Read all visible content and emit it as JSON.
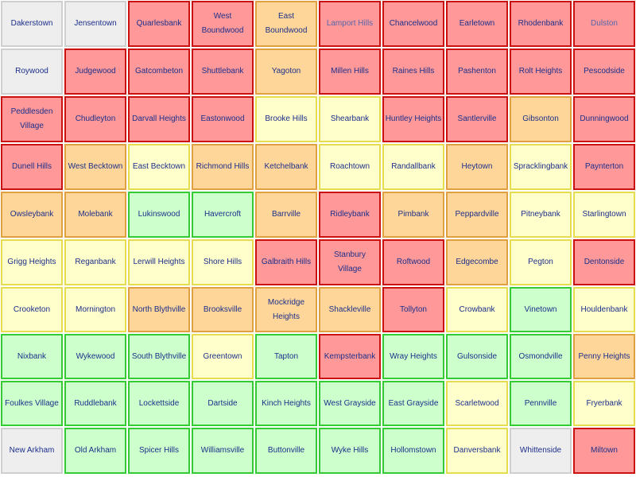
{
  "status_colors": {
    "grey": {
      "fill": "#eeeeee",
      "border": "#cfcfcf"
    },
    "red": {
      "fill": "#ff9999",
      "border": "#cc1111"
    },
    "orange": {
      "fill": "#ffd699",
      "border": "#e0a040"
    },
    "yellow": {
      "fill": "#ffffcc",
      "border": "#e6dc50"
    },
    "green": {
      "fill": "#ccffcc",
      "border": "#33cc33"
    }
  },
  "grid": {
    "rows": [
      [
        {
          "name": "Dakerstown",
          "status": "grey"
        },
        {
          "name": "Jensentown",
          "status": "grey"
        },
        {
          "name": "Quarlesbank",
          "status": "red"
        },
        {
          "name": "West Boundwood",
          "status": "red"
        },
        {
          "name": "East Boundwood",
          "status": "orange"
        },
        {
          "name": "Lamport Hills",
          "status": "red",
          "faded": true
        },
        {
          "name": "Chancelwood",
          "status": "red"
        },
        {
          "name": "Earletown",
          "status": "red"
        },
        {
          "name": "Rhodenbank",
          "status": "red"
        },
        {
          "name": "Dulston",
          "status": "red",
          "faded": true
        }
      ],
      [
        {
          "name": "Roywood",
          "status": "grey"
        },
        {
          "name": "Judgewood",
          "status": "red"
        },
        {
          "name": "Gatcombeton",
          "status": "red"
        },
        {
          "name": "Shuttlebank",
          "status": "red"
        },
        {
          "name": "Yagoton",
          "status": "orange"
        },
        {
          "name": "Millen Hills",
          "status": "red"
        },
        {
          "name": "Raines Hills",
          "status": "red"
        },
        {
          "name": "Pashenton",
          "status": "red"
        },
        {
          "name": "Rolt Heights",
          "status": "red"
        },
        {
          "name": "Pescodside",
          "status": "red"
        }
      ],
      [
        {
          "name": "Peddlesden Village",
          "status": "red"
        },
        {
          "name": "Chudleyton",
          "status": "red"
        },
        {
          "name": "Darvall Heights",
          "status": "red"
        },
        {
          "name": "Eastonwood",
          "status": "red"
        },
        {
          "name": "Brooke Hills",
          "status": "yellow"
        },
        {
          "name": "Shearbank",
          "status": "yellow"
        },
        {
          "name": "Huntley Heights",
          "status": "red"
        },
        {
          "name": "Santlerville",
          "status": "red"
        },
        {
          "name": "Gibsonton",
          "status": "orange"
        },
        {
          "name": "Dunningwood",
          "status": "red"
        }
      ],
      [
        {
          "name": "Dunell Hills",
          "status": "red"
        },
        {
          "name": "West Becktown",
          "status": "orange"
        },
        {
          "name": "East Becktown",
          "status": "yellow"
        },
        {
          "name": "Richmond Hills",
          "status": "orange"
        },
        {
          "name": "Ketchelbank",
          "status": "orange"
        },
        {
          "name": "Roachtown",
          "status": "yellow"
        },
        {
          "name": "Randallbank",
          "status": "yellow"
        },
        {
          "name": "Heytown",
          "status": "orange"
        },
        {
          "name": "Spracklingbank",
          "status": "yellow"
        },
        {
          "name": "Paynterton",
          "status": "red"
        }
      ],
      [
        {
          "name": "Owsleybank",
          "status": "orange"
        },
        {
          "name": "Molebank",
          "status": "orange"
        },
        {
          "name": "Lukinswood",
          "status": "green"
        },
        {
          "name": "Havercroft",
          "status": "green"
        },
        {
          "name": "Barrville",
          "status": "orange"
        },
        {
          "name": "Ridleybank",
          "status": "red"
        },
        {
          "name": "Pimbank",
          "status": "orange"
        },
        {
          "name": "Peppardville",
          "status": "orange"
        },
        {
          "name": "Pitneybank",
          "status": "yellow"
        },
        {
          "name": "Starlingtown",
          "status": "yellow"
        }
      ],
      [
        {
          "name": "Grigg Heights",
          "status": "yellow"
        },
        {
          "name": "Reganbank",
          "status": "yellow"
        },
        {
          "name": "Lerwill Heights",
          "status": "yellow"
        },
        {
          "name": "Shore Hills",
          "status": "yellow"
        },
        {
          "name": "Galbraith Hills",
          "status": "red"
        },
        {
          "name": "Stanbury Village",
          "status": "red"
        },
        {
          "name": "Roftwood",
          "status": "red"
        },
        {
          "name": "Edgecombe",
          "status": "orange"
        },
        {
          "name": "Pegton",
          "status": "yellow"
        },
        {
          "name": "Dentonside",
          "status": "red"
        }
      ],
      [
        {
          "name": "Crooketon",
          "status": "yellow"
        },
        {
          "name": "Mornington",
          "status": "yellow"
        },
        {
          "name": "North Blythville",
          "status": "orange"
        },
        {
          "name": "Brooksville",
          "status": "orange"
        },
        {
          "name": "Mockridge Heights",
          "status": "orange"
        },
        {
          "name": "Shackleville",
          "status": "orange"
        },
        {
          "name": "Tollyton",
          "status": "red"
        },
        {
          "name": "Crowbank",
          "status": "yellow"
        },
        {
          "name": "Vinetown",
          "status": "green"
        },
        {
          "name": "Houldenbank",
          "status": "yellow"
        }
      ],
      [
        {
          "name": "Nixbank",
          "status": "green"
        },
        {
          "name": "Wykewood",
          "status": "green"
        },
        {
          "name": "South Blythville",
          "status": "green"
        },
        {
          "name": "Greentown",
          "status": "yellow"
        },
        {
          "name": "Tapton",
          "status": "green"
        },
        {
          "name": "Kempsterbank",
          "status": "red"
        },
        {
          "name": "Wray Heights",
          "status": "green"
        },
        {
          "name": "Gulsonside",
          "status": "green"
        },
        {
          "name": "Osmondville",
          "status": "green"
        },
        {
          "name": "Penny Heights",
          "status": "orange"
        }
      ],
      [
        {
          "name": "Foulkes Village",
          "status": "green"
        },
        {
          "name": "Ruddlebank",
          "status": "green"
        },
        {
          "name": "Lockettside",
          "status": "green"
        },
        {
          "name": "Dartside",
          "status": "green"
        },
        {
          "name": "Kinch Heights",
          "status": "green"
        },
        {
          "name": "West Grayside",
          "status": "green"
        },
        {
          "name": "East Grayside",
          "status": "green"
        },
        {
          "name": "Scarletwood",
          "status": "yellow"
        },
        {
          "name": "Pennville",
          "status": "green"
        },
        {
          "name": "Fryerbank",
          "status": "yellow"
        }
      ],
      [
        {
          "name": "New Arkham",
          "status": "grey"
        },
        {
          "name": "Old Arkham",
          "status": "green"
        },
        {
          "name": "Spicer Hills",
          "status": "green"
        },
        {
          "name": "Williamsville",
          "status": "green"
        },
        {
          "name": "Buttonville",
          "status": "green"
        },
        {
          "name": "Wyke Hills",
          "status": "green"
        },
        {
          "name": "Hollomstown",
          "status": "green"
        },
        {
          "name": "Danversbank",
          "status": "yellow"
        },
        {
          "name": "Whittenside",
          "status": "grey"
        },
        {
          "name": "Miltown",
          "status": "red"
        }
      ]
    ]
  }
}
